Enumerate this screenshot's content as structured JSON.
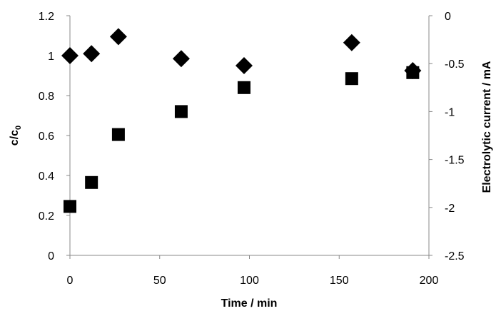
{
  "chart_data": {
    "type": "scatter",
    "title": "",
    "xlabel": "Time / min",
    "ylabel_left": {
      "main": "c/c",
      "sub": "0"
    },
    "ylabel_right": "Electrolytic current / mA",
    "xlim": [
      0,
      200
    ],
    "ylim_left": [
      0,
      1.2
    ],
    "ylim_right": [
      -2.5,
      0
    ],
    "xticks": [
      "0",
      "50",
      "100",
      "150",
      "200"
    ],
    "yticks_left": [
      "0",
      "0.2",
      "0.4",
      "0.6",
      "0.8",
      "1",
      "1.2"
    ],
    "yticks_right": [
      "-2.5",
      "-2",
      "-1.5",
      "-1",
      "-0.5",
      "0"
    ],
    "grid": false,
    "legend": false,
    "series": [
      {
        "marker": "diamond",
        "axis": "left",
        "color": "#000000",
        "points": [
          [
            0,
            1.0
          ],
          [
            12,
            1.01
          ],
          [
            27,
            1.095
          ],
          [
            62,
            0.985
          ],
          [
            97,
            0.95
          ],
          [
            157,
            1.065
          ],
          [
            191,
            0.925
          ]
        ]
      },
      {
        "marker": "square",
        "axis": "left",
        "color": "#000000",
        "points": [
          [
            0,
            0.245
          ],
          [
            12,
            0.365
          ],
          [
            27,
            0.605
          ],
          [
            62,
            0.72
          ],
          [
            97,
            0.84
          ],
          [
            157,
            0.885
          ],
          [
            191,
            0.915
          ]
        ]
      }
    ]
  }
}
